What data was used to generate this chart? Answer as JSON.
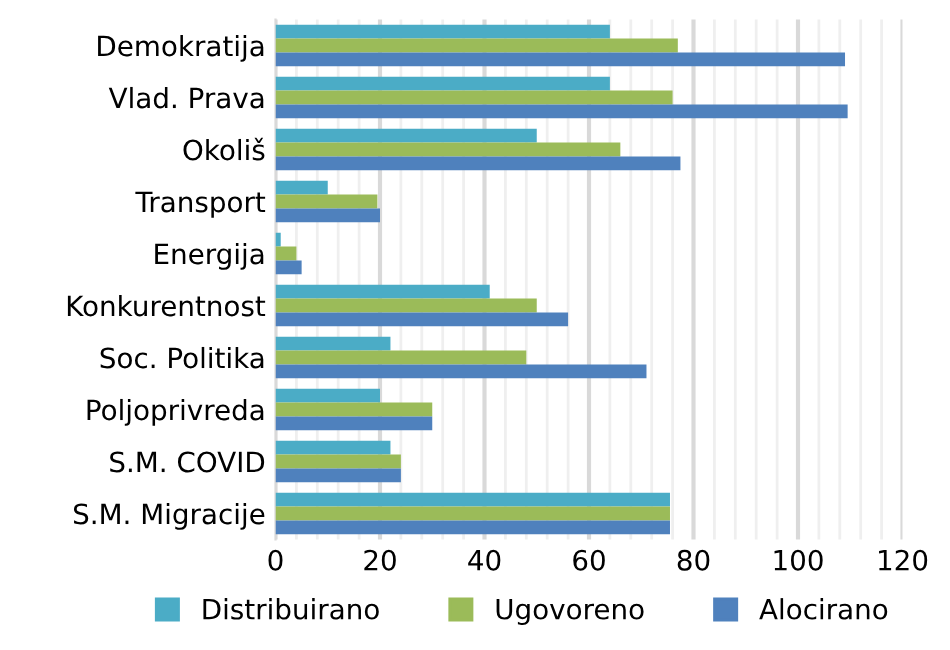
{
  "chart_data": {
    "type": "bar",
    "orientation": "horizontal",
    "categories": [
      "Demokratija",
      "Vlad. Prava",
      "Okoliš",
      "Transport",
      "Energija",
      "Konkurentnost",
      "Soc. Politika",
      "Poljoprivreda",
      "S.M. COVID",
      "S.M. Migracije"
    ],
    "series": [
      {
        "name": "Distribuirano",
        "color": "#4bacc6",
        "values": [
          64,
          64,
          50,
          10,
          1,
          41,
          22,
          20,
          22,
          75.5
        ]
      },
      {
        "name": "Ugovoreno",
        "color": "#9bbb59",
        "values": [
          77,
          76,
          66,
          19.5,
          4,
          50,
          48,
          30,
          24,
          75.5
        ]
      },
      {
        "name": "Alocirano",
        "color": "#4f81bd",
        "values": [
          109,
          109.5,
          77.5,
          20,
          5,
          56,
          71,
          30,
          24,
          75.5
        ]
      }
    ],
    "xlim": [
      0,
      120
    ],
    "xticks": [
      0,
      20,
      40,
      60,
      80,
      100,
      120
    ],
    "grid": "x",
    "legend": "bottom"
  }
}
